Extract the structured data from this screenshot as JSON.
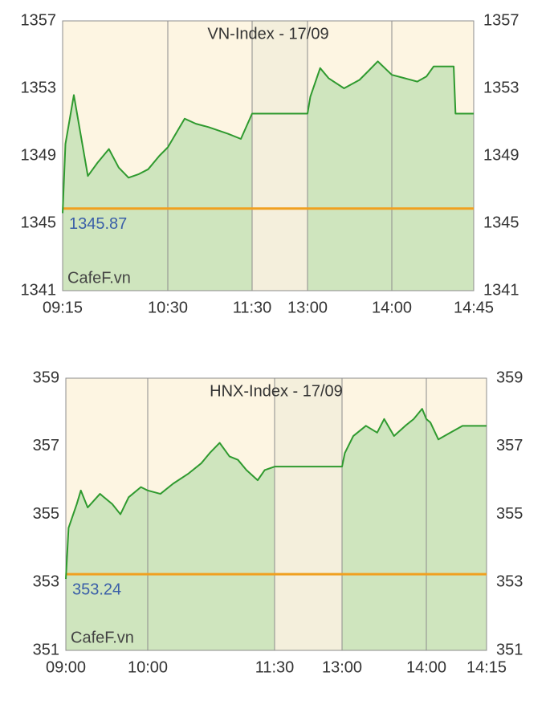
{
  "chart_data": [
    {
      "type": "line",
      "title": "VN-Index - 17/09",
      "watermark": "CafeF.vn",
      "x": [
        "09:15",
        "09:17",
        "09:23",
        "09:33",
        "09:40",
        "09:48",
        "09:55",
        "10:02",
        "10:09",
        "10:16",
        "10:24",
        "10:30",
        "10:42",
        "10:50",
        "10:59",
        "11:13",
        "11:22",
        "11:30",
        "13:00",
        "13:02",
        "13:09",
        "13:15",
        "13:26",
        "13:37",
        "13:43",
        "13:50",
        "14:00",
        "14:07",
        "14:14",
        "14:19",
        "14:23",
        "14:34",
        "14:35",
        "14:45"
      ],
      "values": [
        1345.6,
        1349.7,
        1352.6,
        1347.8,
        1348.6,
        1349.4,
        1348.3,
        1347.7,
        1347.9,
        1348.2,
        1349.0,
        1349.5,
        1351.2,
        1350.9,
        1350.7,
        1350.3,
        1350.0,
        1351.5,
        1351.5,
        1352.5,
        1354.2,
        1353.6,
        1353.0,
        1353.5,
        1354.0,
        1354.6,
        1353.8,
        1353.6,
        1353.4,
        1353.7,
        1354.3,
        1354.3,
        1351.5,
        1351.5
      ],
      "color": "#2f9a2f",
      "fill": "#cfe5be",
      "reference_line": 1345.87,
      "reference_color": "#f0a020",
      "session_break": [
        "11:30",
        "13:00"
      ],
      "ylim": [
        1341,
        1357
      ],
      "yticks": [
        1341,
        1345,
        1349,
        1353,
        1357
      ],
      "xticks": [
        "09:15",
        "10:30",
        "11:30",
        "13:00",
        "14:00",
        "14:45"
      ],
      "grid": "x"
    },
    {
      "type": "line",
      "title": "HNX-Index - 17/09",
      "watermark": "CafeF.vn",
      "x": [
        "09:00",
        "09:02",
        "09:08",
        "09:11",
        "09:16",
        "09:25",
        "09:34",
        "09:40",
        "09:46",
        "09:55",
        "10:00",
        "10:09",
        "10:18",
        "10:29",
        "10:38",
        "10:44",
        "10:51",
        "10:58",
        "11:04",
        "11:10",
        "11:18",
        "11:23",
        "11:30",
        "13:00",
        "13:02",
        "13:08",
        "13:17",
        "13:25",
        "13:30",
        "13:37",
        "13:45",
        "13:51",
        "13:57",
        "14:00",
        "14:01",
        "14:03",
        "14:06",
        "14:09",
        "14:15"
      ],
      "values": [
        353.1,
        354.6,
        355.3,
        355.7,
        355.2,
        355.6,
        355.3,
        355.0,
        355.5,
        355.8,
        355.7,
        355.6,
        355.9,
        356.2,
        356.5,
        356.8,
        357.1,
        356.7,
        356.6,
        356.3,
        356.0,
        356.3,
        356.4,
        356.4,
        356.8,
        357.3,
        357.6,
        357.4,
        357.8,
        357.3,
        357.6,
        357.8,
        358.1,
        357.8,
        357.7,
        357.2,
        357.4,
        357.6,
        357.6
      ],
      "color": "#2f9a2f",
      "fill": "#cfe5be",
      "reference_line": 353.24,
      "reference_color": "#f0a020",
      "session_break": [
        "11:30",
        "13:00"
      ],
      "ylim": [
        351,
        359
      ],
      "yticks": [
        351,
        353,
        355,
        357,
        359
      ],
      "xticks": [
        "09:00",
        "10:00",
        "11:30",
        "13:00",
        "14:00",
        "14:15"
      ],
      "grid": "x"
    }
  ]
}
